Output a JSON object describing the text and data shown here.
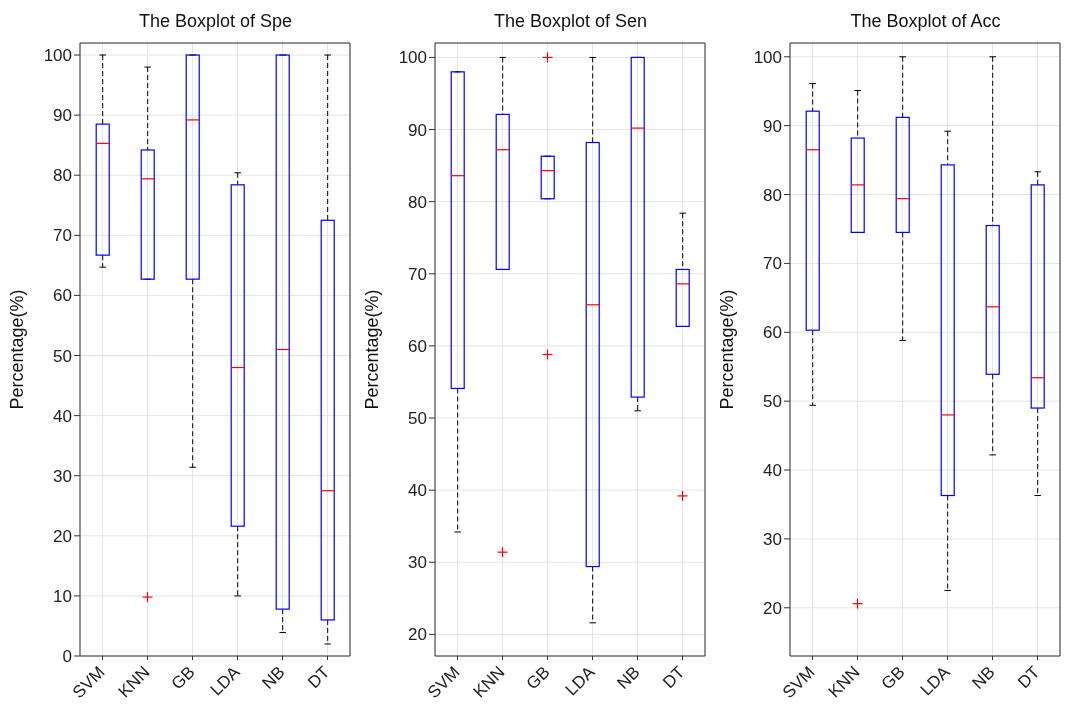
{
  "chart_data": [
    {
      "type": "box",
      "title": "The Boxplot of Spe",
      "ylabel": "Percentage(%)",
      "categories": [
        "SVM",
        "KNN",
        "GB",
        "LDA",
        "NB",
        "DT"
      ],
      "ylim": [
        0,
        102
      ],
      "yticks": [
        0,
        10,
        20,
        30,
        40,
        50,
        60,
        70,
        80,
        90,
        100
      ],
      "grid": true,
      "color": "#0000ff",
      "boxes": [
        {
          "low": 64.7,
          "q1": 66.7,
          "median": 85.3,
          "q3": 88.5,
          "high": 100
        },
        {
          "low": 62.7,
          "q1": 62.7,
          "median": 79.4,
          "q3": 84.2,
          "high": 98,
          "outliers": [
            9.8
          ]
        },
        {
          "low": 31.4,
          "q1": 62.7,
          "median": 89.2,
          "q3": 100,
          "high": 100
        },
        {
          "low": 10,
          "q1": 21.6,
          "median": 48,
          "q3": 78.4,
          "high": 80.4
        },
        {
          "low": 3.9,
          "q1": 7.8,
          "median": 51,
          "q3": 100,
          "high": 100
        },
        {
          "low": 2,
          "q1": 6,
          "median": 27.5,
          "q3": 72.5,
          "high": 100
        }
      ]
    },
    {
      "type": "box",
      "title": "The Boxplot of Sen",
      "ylabel": "Percentage(%)",
      "categories": [
        "SVM",
        "KNN",
        "GB",
        "LDA",
        "NB",
        "DT"
      ],
      "ylim": [
        17,
        102
      ],
      "yticks": [
        20,
        30,
        40,
        50,
        60,
        70,
        80,
        90,
        100
      ],
      "grid": true,
      "color": "#0000ff",
      "boxes": [
        {
          "low": 34.2,
          "q1": 54.1,
          "median": 83.6,
          "q3": 98,
          "high": 98
        },
        {
          "low": 70.6,
          "q1": 70.6,
          "median": 87.2,
          "q3": 92.1,
          "high": 100,
          "outliers": [
            31.4
          ]
        },
        {
          "low": 80.4,
          "q1": 80.4,
          "median": 84.3,
          "q3": 86.3,
          "high": 86.3,
          "outliers": [
            58.8,
            100
          ]
        },
        {
          "low": 21.6,
          "q1": 29.4,
          "median": 65.7,
          "q3": 88.2,
          "high": 100
        },
        {
          "low": 51,
          "q1": 52.9,
          "median": 90.2,
          "q3": 100,
          "high": 100
        },
        {
          "low": 62.7,
          "q1": 62.7,
          "median": 68.6,
          "q3": 70.6,
          "high": 78.4,
          "outliers": [
            39.2
          ]
        }
      ]
    },
    {
      "type": "box",
      "title": "The Boxplot of Acc",
      "ylabel": "Percentage(%)",
      "categories": [
        "SVM",
        "KNN",
        "GB",
        "LDA",
        "NB",
        "DT"
      ],
      "ylim": [
        13,
        102
      ],
      "yticks": [
        20,
        30,
        40,
        50,
        60,
        70,
        80,
        90,
        100
      ],
      "grid": true,
      "color": "#0000ff",
      "boxes": [
        {
          "low": 49.4,
          "q1": 60.3,
          "median": 86.5,
          "q3": 92.1,
          "high": 96.1
        },
        {
          "low": 74.5,
          "q1": 74.5,
          "median": 81.4,
          "q3": 88.2,
          "high": 95.1,
          "outliers": [
            20.6
          ]
        },
        {
          "low": 58.8,
          "q1": 74.5,
          "median": 79.4,
          "q3": 91.2,
          "high": 100
        },
        {
          "low": 22.5,
          "q1": 36.3,
          "median": 48,
          "q3": 84.3,
          "high": 89.2
        },
        {
          "low": 42.2,
          "q1": 53.9,
          "median": 63.7,
          "q3": 75.5,
          "high": 100
        },
        {
          "low": 36.3,
          "q1": 49,
          "median": 53.4,
          "q3": 81.4,
          "high": 83.3
        }
      ]
    }
  ]
}
